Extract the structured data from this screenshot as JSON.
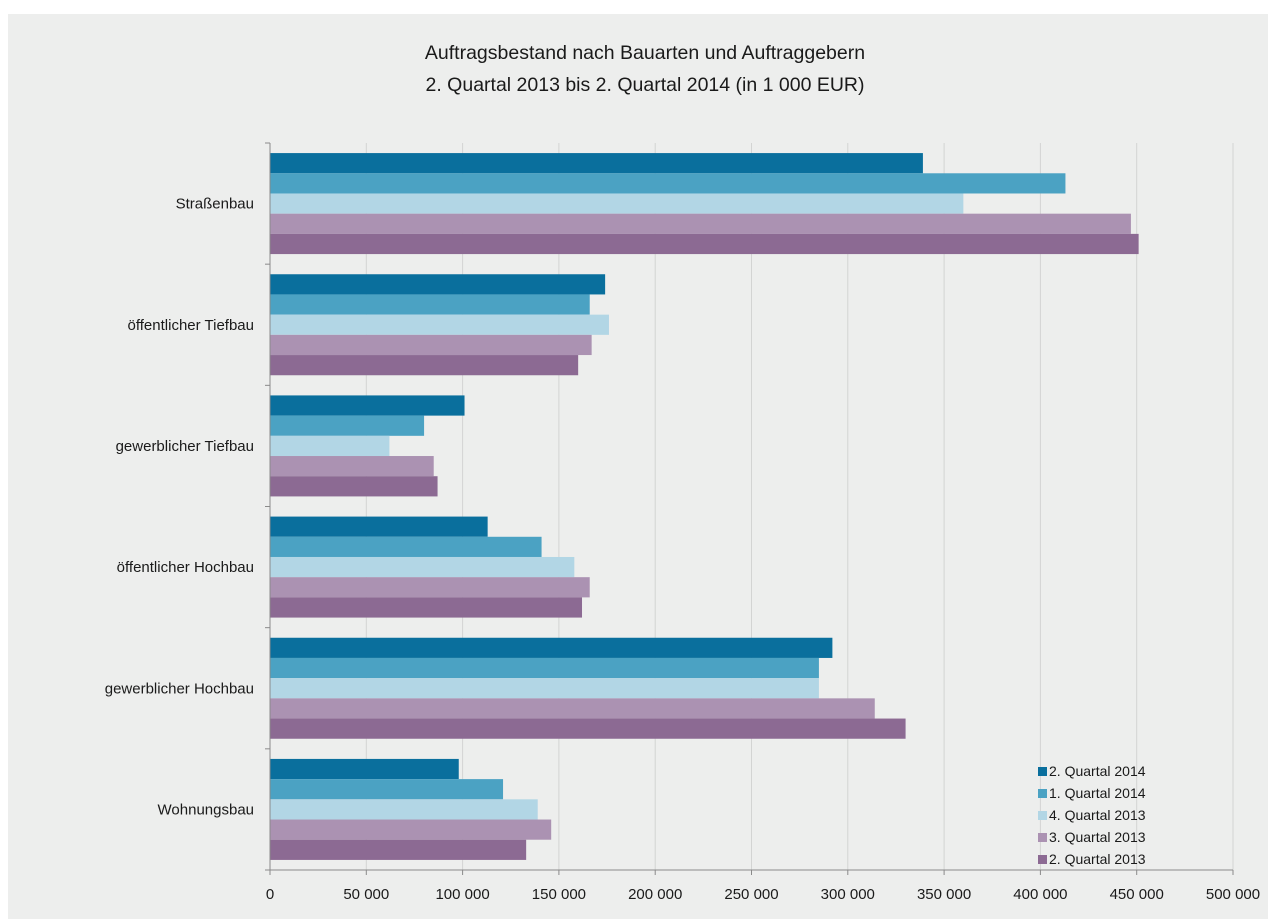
{
  "chart_data": {
    "type": "bar",
    "orientation": "horizontal",
    "title": "Auftragsbestand nach Bauarten und Auftraggebern",
    "subtitle": "2. Quartal 2013 bis 2. Quartal 2014 (in 1 000 EUR)",
    "xlabel": "",
    "ylabel": "",
    "xlim": [
      0,
      500000
    ],
    "x_ticks": [
      0,
      50000,
      100000,
      150000,
      200000,
      250000,
      300000,
      350000,
      400000,
      450000,
      500000
    ],
    "x_tick_labels": [
      "0",
      "50 000",
      "100 000",
      "150 000",
      "200 000",
      "250 000",
      "300 000",
      "350 000",
      "400 000",
      "450 000",
      "500 000"
    ],
    "grid": "vertical",
    "legend_position": "bottom-right",
    "categories": [
      "Straßenbau",
      "öffentlicher Tiefbau",
      "gewerblicher Tiefbau",
      "öffentlicher Hochbau",
      "gewerblicher Hochbau",
      "Wohnungsbau"
    ],
    "series": [
      {
        "name": "2. Quartal 2014",
        "color": "#0a6f9d",
        "values": [
          339000,
          174000,
          101000,
          113000,
          292000,
          98000
        ]
      },
      {
        "name": "1. Quartal 2014",
        "color": "#4ba2c3",
        "values": [
          413000,
          166000,
          80000,
          141000,
          285000,
          121000
        ]
      },
      {
        "name": "4. Quartal 2013",
        "color": "#b2d6e5",
        "values": [
          360000,
          176000,
          62000,
          158000,
          285000,
          139000
        ]
      },
      {
        "name": "3. Quartal 2013",
        "color": "#ab92b2",
        "values": [
          447000,
          167000,
          85000,
          166000,
          314000,
          146000
        ]
      },
      {
        "name": "2. Quartal 2013",
        "color": "#8c6a93",
        "values": [
          451000,
          160000,
          87000,
          162000,
          330000,
          133000
        ]
      }
    ]
  }
}
